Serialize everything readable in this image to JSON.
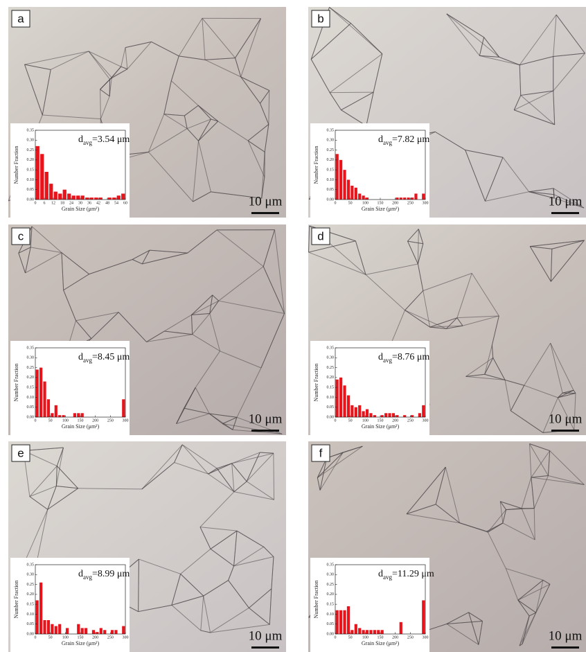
{
  "chart_data": [
    {
      "type": "histogram",
      "panel_label": "a",
      "scale_bar_label": "10 μm",
      "annotation": {
        "symbol": "d",
        "subscript": "avg",
        "text": "=3.54 μm"
      },
      "y_label": "Number Fraction",
      "x_label": "Grain Size (μm²)",
      "color": "#e8141c",
      "bins": [
        0,
        3,
        6,
        9,
        12,
        15,
        18,
        21,
        24,
        27,
        30,
        33,
        36,
        39,
        42,
        45,
        48,
        51,
        54,
        57,
        60
      ],
      "values": [
        0.27,
        0.23,
        0.14,
        0.08,
        0.04,
        0.03,
        0.05,
        0.03,
        0.02,
        0.02,
        0.02,
        0.01,
        0.01,
        0.01,
        0.01,
        0.0,
        0.01,
        0.01,
        0.02,
        0.03
      ],
      "xlim": [
        0,
        60
      ],
      "xticks": [
        0,
        6,
        12,
        18,
        24,
        30,
        36,
        42,
        48,
        54,
        60
      ],
      "ylim": [
        0,
        0.35
      ],
      "yticks": [
        {
          "value": 0,
          "label": "0.00"
        },
        {
          "value": 0.05,
          "label": "0.05"
        },
        {
          "value": 0.1,
          "label": "0.10"
        },
        {
          "value": 0.15,
          "label": "0.15"
        },
        {
          "value": 0.2,
          "label": "0.20"
        },
        {
          "value": 0.25,
          "label": "0.25"
        },
        {
          "value": 0.3,
          "label": "0.30"
        },
        {
          "value": 0.35,
          "label": "0.35"
        }
      ]
    },
    {
      "type": "histogram",
      "panel_label": "b",
      "scale_bar_label": "10 μm",
      "annotation": {
        "symbol": "d",
        "subscript": "avg",
        "text": "=7.82 μm"
      },
      "y_label": "Number Fraction",
      "x_label": "Grain Size (μm²)",
      "color": "#e8141c",
      "bins": [
        0,
        12.5,
        25,
        37.5,
        50,
        62.5,
        75,
        87.5,
        100,
        112.5,
        125,
        137.5,
        150,
        162.5,
        175,
        187.5,
        200,
        212.5,
        225,
        237.5,
        250,
        262.5,
        275,
        287.5,
        300
      ],
      "values": [
        0.23,
        0.2,
        0.15,
        0.1,
        0.07,
        0.06,
        0.03,
        0.02,
        0.01,
        0,
        0,
        0,
        0,
        0,
        0,
        0,
        0.01,
        0.01,
        0.01,
        0.01,
        0.01,
        0.03,
        0,
        0.03
      ],
      "xlim": [
        0,
        300
      ],
      "xticks": [
        0,
        50,
        100,
        150,
        200,
        250,
        300
      ],
      "ylim": [
        0,
        0.35
      ],
      "yticks": [
        {
          "value": 0,
          "label": "0.00"
        },
        {
          "value": 0.05,
          "label": "0.05"
        },
        {
          "value": 0.1,
          "label": "0.10"
        },
        {
          "value": 0.15,
          "label": "0.15"
        },
        {
          "value": 0.2,
          "label": "0.20"
        },
        {
          "value": 0.25,
          "label": "0.25"
        },
        {
          "value": 0.3,
          "label": "0.30"
        },
        {
          "value": 0.35,
          "label": "0.35"
        }
      ]
    },
    {
      "type": "histogram",
      "panel_label": "c",
      "scale_bar_label": "10 μm",
      "annotation": {
        "symbol": "d",
        "subscript": "avg",
        "text": "=8.45 μm"
      },
      "y_label": "Number Fraction",
      "x_label": "Grain Size (μm²)",
      "color": "#e8141c",
      "bins": [
        0,
        12.5,
        25,
        37.5,
        50,
        62.5,
        75,
        87.5,
        100,
        112.5,
        125,
        137.5,
        150,
        162.5,
        175,
        187.5,
        200,
        212.5,
        225,
        237.5,
        250,
        262.5,
        275,
        287.5,
        300
      ],
      "values": [
        0.24,
        0.25,
        0.18,
        0.09,
        0.02,
        0.06,
        0.01,
        0.01,
        0,
        0,
        0.02,
        0.02,
        0.02,
        0,
        0,
        0,
        0,
        0,
        0,
        0,
        0,
        0,
        0,
        0.09
      ],
      "xlim": [
        0,
        300
      ],
      "xticks": [
        0,
        50,
        100,
        150,
        200,
        250,
        300
      ],
      "ylim": [
        0,
        0.35
      ],
      "yticks": [
        {
          "value": 0,
          "label": "0.00"
        },
        {
          "value": 0.05,
          "label": "0.05"
        },
        {
          "value": 0.1,
          "label": "0.10"
        },
        {
          "value": 0.15,
          "label": "0.15"
        },
        {
          "value": 0.2,
          "label": "0.20"
        },
        {
          "value": 0.25,
          "label": "0.25"
        },
        {
          "value": 0.3,
          "label": "0.30"
        },
        {
          "value": 0.35,
          "label": "0.35"
        }
      ]
    },
    {
      "type": "histogram",
      "panel_label": "d",
      "scale_bar_label": "10 μm",
      "annotation": {
        "symbol": "d",
        "subscript": "avg",
        "text": "=8.76 μm"
      },
      "y_label": "Number Fraction",
      "x_label": "Grain Size (μm²)",
      "color": "#e8141c",
      "bins": [
        0,
        12.5,
        25,
        37.5,
        50,
        62.5,
        75,
        87.5,
        100,
        112.5,
        125,
        137.5,
        150,
        162.5,
        175,
        187.5,
        200,
        212.5,
        225,
        237.5,
        250,
        262.5,
        275,
        287.5,
        300
      ],
      "values": [
        0.19,
        0.2,
        0.16,
        0.11,
        0.06,
        0.05,
        0.06,
        0.03,
        0.04,
        0.02,
        0.01,
        0,
        0.01,
        0.02,
        0.02,
        0.02,
        0.01,
        0,
        0.01,
        0,
        0.01,
        0,
        0.02,
        0.06
      ],
      "xlim": [
        0,
        300
      ],
      "xticks": [
        0,
        50,
        100,
        150,
        200,
        250,
        300
      ],
      "ylim": [
        0,
        0.35
      ],
      "yticks": [
        {
          "value": 0,
          "label": "0.00"
        },
        {
          "value": 0.05,
          "label": "0.05"
        },
        {
          "value": 0.1,
          "label": "0.10"
        },
        {
          "value": 0.15,
          "label": "0.15"
        },
        {
          "value": 0.2,
          "label": "0.20"
        },
        {
          "value": 0.25,
          "label": "0.25"
        },
        {
          "value": 0.3,
          "label": "0.30"
        },
        {
          "value": 0.35,
          "label": "0.35"
        }
      ]
    },
    {
      "type": "histogram",
      "panel_label": "e",
      "scale_bar_label": "10 μm",
      "annotation": {
        "symbol": "d",
        "subscript": "avg",
        "text": "=8.99 μm"
      },
      "y_label": "Number Fraction",
      "x_label": "Grain Size (μm²)",
      "color": "#e8141c",
      "bins": [
        0,
        12.5,
        25,
        37.5,
        50,
        62.5,
        75,
        87.5,
        100,
        112.5,
        125,
        137.5,
        150,
        162.5,
        175,
        187.5,
        200,
        212.5,
        225,
        237.5,
        250,
        262.5,
        275,
        287.5,
        300
      ],
      "values": [
        0.17,
        0.26,
        0.07,
        0.07,
        0.05,
        0.04,
        0.05,
        0,
        0.03,
        0,
        0,
        0.05,
        0.03,
        0.03,
        0,
        0.02,
        0.01,
        0.03,
        0.02,
        0,
        0.02,
        0.02,
        0,
        0.04
      ],
      "xlim": [
        0,
        300
      ],
      "xticks": [
        0,
        50,
        100,
        150,
        200,
        250,
        300
      ],
      "ylim": [
        0,
        0.35
      ],
      "yticks": [
        {
          "value": 0,
          "label": "0.00"
        },
        {
          "value": 0.05,
          "label": "0.05"
        },
        {
          "value": 0.1,
          "label": "0.10"
        },
        {
          "value": 0.15,
          "label": "0.15"
        },
        {
          "value": 0.2,
          "label": "0.20"
        },
        {
          "value": 0.25,
          "label": "0.25"
        },
        {
          "value": 0.3,
          "label": "0.30"
        },
        {
          "value": 0.35,
          "label": "0.35"
        }
      ]
    },
    {
      "type": "histogram",
      "panel_label": "f",
      "scale_bar_label": "10 μm",
      "annotation": {
        "symbol": "d",
        "subscript": "avg",
        "text": "=11.29 μm"
      },
      "y_label": "Number Fraction",
      "x_label": "Grain Size (μm²)",
      "color": "#e8141c",
      "bins": [
        0,
        12.5,
        25,
        37.5,
        50,
        62.5,
        75,
        87.5,
        100,
        112.5,
        125,
        137.5,
        150,
        162.5,
        175,
        187.5,
        200,
        212.5,
        225,
        237.5,
        250,
        262.5,
        275,
        287.5,
        300
      ],
      "values": [
        0.12,
        0.12,
        0.12,
        0.14,
        0.02,
        0.05,
        0.03,
        0.02,
        0.02,
        0.02,
        0.02,
        0.02,
        0.02,
        0,
        0,
        0,
        0,
        0.06,
        0,
        0,
        0,
        0,
        0,
        0.17
      ],
      "xlim": [
        0,
        300
      ],
      "xticks": [
        0,
        50,
        100,
        150,
        200,
        250,
        300
      ],
      "ylim": [
        0,
        0.35
      ],
      "yticks": [
        {
          "value": 0,
          "label": "0.00"
        },
        {
          "value": 0.05,
          "label": "0.05"
        },
        {
          "value": 0.1,
          "label": "0.10"
        },
        {
          "value": 0.15,
          "label": "0.15"
        },
        {
          "value": 0.2,
          "label": "0.20"
        },
        {
          "value": 0.25,
          "label": "0.25"
        },
        {
          "value": 0.3,
          "label": "0.30"
        },
        {
          "value": 0.35,
          "label": "0.35"
        }
      ]
    }
  ]
}
